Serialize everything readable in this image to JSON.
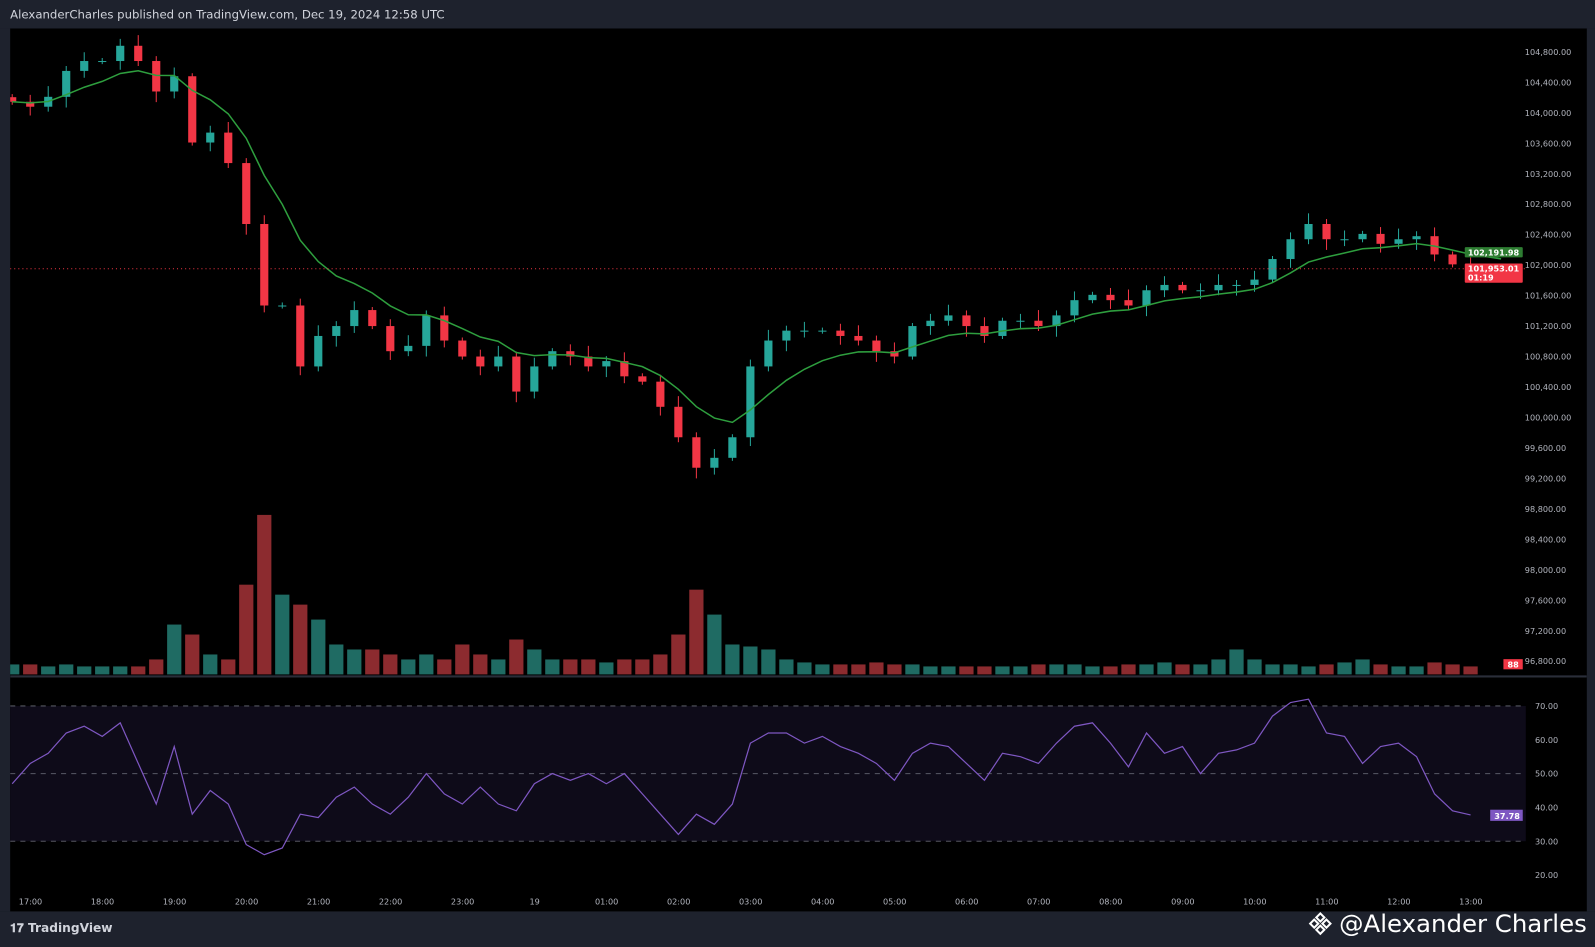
{
  "header": {
    "title": "AlexanderCharles published on TradingView.com, Dec 19, 2024 12:58 UTC"
  },
  "footer": {
    "logo_text": "TradingView",
    "author": "@Alexander Charles"
  },
  "colors": {
    "up": "#26a69a",
    "down": "#f23645",
    "vol_up": "#1f6b63",
    "vol_down": "#8c2b2f",
    "ma": "#2e9e3e",
    "rsi": "#7e57c2",
    "rsi_band": "#0e0b19",
    "price_line": "#f23645"
  },
  "badges": {
    "ma_value": "102,191.98",
    "last_price": "101,953.01",
    "countdown": "01:19",
    "volume": "88",
    "rsi_value": "37.78"
  },
  "price_axis": [
    "104,800.00",
    "104,400.00",
    "104,000.00",
    "103,600.00",
    "103,200.00",
    "102,800.00",
    "102,400.00",
    "102,000.00",
    "101,600.00",
    "101,200.00",
    "100,800.00",
    "100,400.00",
    "100,000.00",
    "99,600.00",
    "99,200.00",
    "98,800.00",
    "98,400.00",
    "98,000.00",
    "97,600.00",
    "97,200.00",
    "96,800.00"
  ],
  "rsi_axis": [
    "70.00",
    "60.00",
    "50.00",
    "40.00",
    "30.00",
    "20.00"
  ],
  "time_axis": [
    "17:00",
    "18:00",
    "19:00",
    "20:00",
    "21:00",
    "22:00",
    "23:00",
    "19",
    "01:00",
    "02:00",
    "03:00",
    "04:00",
    "05:00",
    "06:00",
    "07:00",
    "08:00",
    "09:00",
    "10:00",
    "11:00",
    "12:00",
    "13:00"
  ],
  "chart_data": {
    "type": "candlestick",
    "symbol_interval": "15m approx",
    "price_range": [
      96800,
      104800
    ],
    "closes": [
      104145,
      104080,
      104210,
      104550,
      104680,
      104680,
      104880,
      104680,
      104280,
      104480,
      103610,
      103740,
      103340,
      102540,
      101470,
      101470,
      100670,
      101070,
      101200,
      101410,
      101200,
      100870,
      100940,
      101340,
      101010,
      100800,
      100670,
      100800,
      100340,
      100670,
      100870,
      100800,
      100670,
      100740,
      100540,
      100470,
      100140,
      99740,
      99340,
      99470,
      99740,
      100670,
      101010,
      101140,
      101140,
      101140,
      101070,
      101010,
      100870,
      100800,
      101200,
      101270,
      101340,
      101200,
      101070,
      101270,
      101270,
      101200,
      101340,
      101540,
      101610,
      101540,
      101470,
      101670,
      101740,
      101670,
      101670,
      101740,
      101740,
      101810,
      102080,
      102340,
      102540,
      102340,
      102340,
      102410,
      102280,
      102340,
      102380,
      102140,
      102010,
      101953
    ],
    "volumes": [
      10,
      10,
      8,
      10,
      8,
      8,
      8,
      8,
      15,
      50,
      40,
      20,
      15,
      90,
      160,
      80,
      70,
      55,
      30,
      25,
      25,
      20,
      15,
      20,
      15,
      30,
      20,
      15,
      35,
      25,
      15,
      15,
      15,
      12,
      15,
      15,
      20,
      40,
      85,
      60,
      30,
      28,
      25,
      15,
      12,
      10,
      10,
      10,
      12,
      10,
      10,
      8,
      8,
      8,
      8,
      8,
      8,
      10,
      10,
      10,
      8,
      8,
      10,
      10,
      12,
      10,
      10,
      15,
      25,
      15,
      10,
      10,
      8,
      10,
      12,
      15,
      10,
      8,
      8,
      12,
      10,
      8
    ],
    "rsi": [
      47,
      53,
      56,
      62,
      64,
      61,
      65,
      53,
      41,
      58,
      38,
      45,
      41,
      29,
      26,
      28,
      38,
      37,
      43,
      46,
      41,
      38,
      43,
      50,
      44,
      41,
      46,
      41,
      39,
      47,
      50,
      48,
      50,
      47,
      50,
      44,
      38,
      32,
      38,
      35,
      41,
      59,
      62,
      62,
      59,
      61,
      58,
      56,
      53,
      48,
      56,
      59,
      58,
      53,
      48,
      56,
      55,
      53,
      59,
      64,
      65,
      59,
      52,
      62,
      56,
      58,
      50,
      56,
      57,
      59,
      67,
      71,
      72,
      62,
      61,
      53,
      58,
      59,
      55,
      44,
      39,
      37.78
    ],
    "rsi_levels": [
      70,
      50,
      30
    ],
    "rsi_range": [
      15,
      75
    ]
  }
}
